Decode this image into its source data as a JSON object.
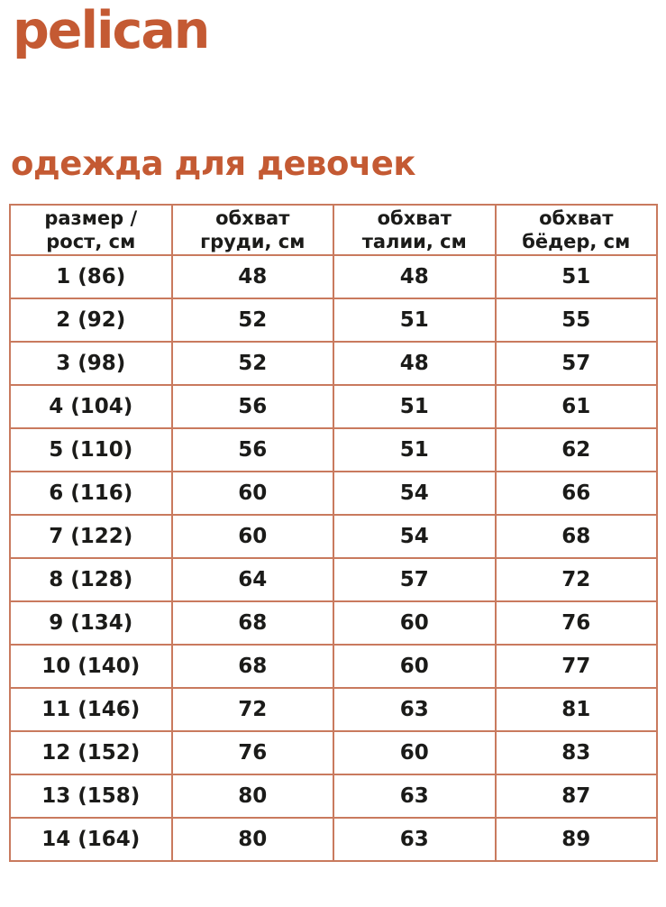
{
  "brand": {
    "logo_text": "pelican"
  },
  "page": {
    "title": "одежда для девочек"
  },
  "colors": {
    "accent": "#c45a33",
    "table_border": "#c97a5e",
    "text": "#1b1b19",
    "background": "#ffffff"
  },
  "table": {
    "columns": [
      {
        "line1": "размер /",
        "line2": "рост, см"
      },
      {
        "line1": "обхват",
        "line2": "груди, см"
      },
      {
        "line1": "обхват",
        "line2": "талии, см"
      },
      {
        "line1": "обхват",
        "line2": "бёдер, см"
      }
    ],
    "rows": [
      {
        "size": "1 (86)",
        "chest": "48",
        "waist": "48",
        "hips": "51"
      },
      {
        "size": "2 (92)",
        "chest": "52",
        "waist": "51",
        "hips": "55"
      },
      {
        "size": "3 (98)",
        "chest": "52",
        "waist": "48",
        "hips": "57"
      },
      {
        "size": "4 (104)",
        "chest": "56",
        "waist": "51",
        "hips": "61"
      },
      {
        "size": "5 (110)",
        "chest": "56",
        "waist": "51",
        "hips": "62"
      },
      {
        "size": "6 (116)",
        "chest": "60",
        "waist": "54",
        "hips": "66"
      },
      {
        "size": "7 (122)",
        "chest": "60",
        "waist": "54",
        "hips": "68"
      },
      {
        "size": "8 (128)",
        "chest": "64",
        "waist": "57",
        "hips": "72"
      },
      {
        "size": "9 (134)",
        "chest": "68",
        "waist": "60",
        "hips": "76"
      },
      {
        "size": "10 (140)",
        "chest": "68",
        "waist": "60",
        "hips": "77"
      },
      {
        "size": "11 (146)",
        "chest": "72",
        "waist": "63",
        "hips": "81"
      },
      {
        "size": "12 (152)",
        "chest": "76",
        "waist": "60",
        "hips": "83"
      },
      {
        "size": "13 (158)",
        "chest": "80",
        "waist": "63",
        "hips": "87"
      },
      {
        "size": "14 (164)",
        "chest": "80",
        "waist": "63",
        "hips": "89"
      }
    ]
  }
}
